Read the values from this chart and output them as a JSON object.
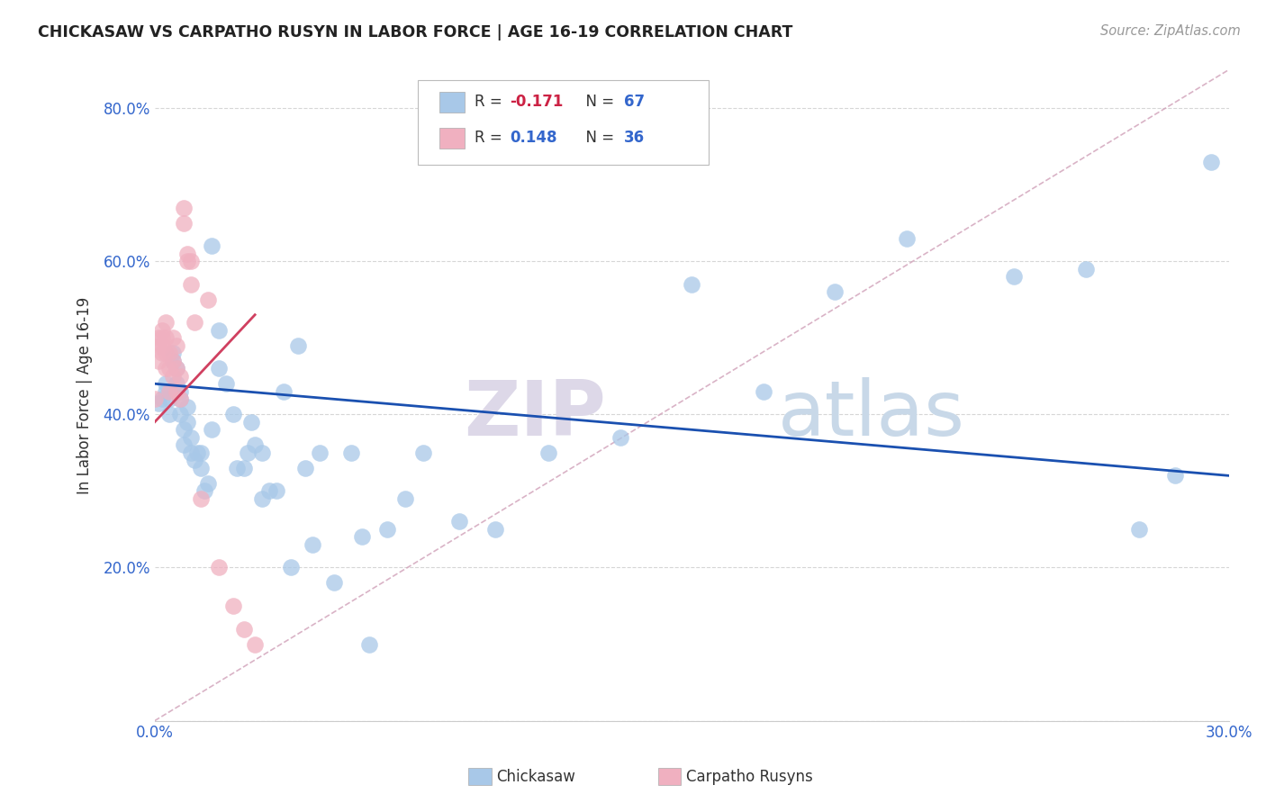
{
  "title": "CHICKASAW VS CARPATHO RUSYN IN LABOR FORCE | AGE 16-19 CORRELATION CHART",
  "source": "Source: ZipAtlas.com",
  "ylabel": "In Labor Force | Age 16-19",
  "xlim": [
    0.0,
    0.3
  ],
  "ylim": [
    0.0,
    0.85
  ],
  "blue_color": "#a8c8e8",
  "pink_color": "#f0b0c0",
  "blue_line_color": "#1a50b0",
  "pink_line_color": "#d04060",
  "dash_line_color": "#d0a0b8",
  "watermark_zip": "ZIP",
  "watermark_atlas": "atlas",
  "chickasaw_R": -0.171,
  "chickasaw_N": 67,
  "carpatho_R": 0.148,
  "carpatho_N": 36,
  "chickasaw_x": [
    0.001,
    0.002,
    0.003,
    0.003,
    0.004,
    0.004,
    0.005,
    0.005,
    0.006,
    0.006,
    0.006,
    0.007,
    0.007,
    0.007,
    0.008,
    0.008,
    0.009,
    0.009,
    0.01,
    0.01,
    0.011,
    0.012,
    0.013,
    0.013,
    0.014,
    0.015,
    0.016,
    0.016,
    0.018,
    0.018,
    0.02,
    0.022,
    0.023,
    0.025,
    0.026,
    0.027,
    0.028,
    0.03,
    0.032,
    0.034,
    0.036,
    0.038,
    0.04,
    0.042,
    0.044,
    0.046,
    0.05,
    0.055,
    0.058,
    0.06,
    0.065,
    0.07,
    0.075,
    0.085,
    0.095,
    0.11,
    0.13,
    0.15,
    0.17,
    0.19,
    0.21,
    0.24,
    0.26,
    0.275,
    0.285,
    0.295,
    0.03
  ],
  "chickasaw_y": [
    0.415,
    0.42,
    0.44,
    0.43,
    0.4,
    0.42,
    0.47,
    0.48,
    0.43,
    0.44,
    0.46,
    0.42,
    0.43,
    0.4,
    0.36,
    0.38,
    0.39,
    0.41,
    0.35,
    0.37,
    0.34,
    0.35,
    0.33,
    0.35,
    0.3,
    0.31,
    0.38,
    0.62,
    0.46,
    0.51,
    0.44,
    0.4,
    0.33,
    0.33,
    0.35,
    0.39,
    0.36,
    0.29,
    0.3,
    0.3,
    0.43,
    0.2,
    0.49,
    0.33,
    0.23,
    0.35,
    0.18,
    0.35,
    0.24,
    0.1,
    0.25,
    0.29,
    0.35,
    0.26,
    0.25,
    0.35,
    0.37,
    0.57,
    0.43,
    0.56,
    0.63,
    0.58,
    0.59,
    0.25,
    0.32,
    0.73,
    0.35
  ],
  "carpatho_x": [
    0.0,
    0.001,
    0.001,
    0.001,
    0.002,
    0.002,
    0.002,
    0.002,
    0.003,
    0.003,
    0.003,
    0.003,
    0.004,
    0.004,
    0.004,
    0.005,
    0.005,
    0.005,
    0.006,
    0.006,
    0.006,
    0.007,
    0.007,
    0.008,
    0.008,
    0.009,
    0.009,
    0.01,
    0.01,
    0.011,
    0.013,
    0.015,
    0.018,
    0.022,
    0.025,
    0.028
  ],
  "carpatho_y": [
    0.42,
    0.5,
    0.49,
    0.47,
    0.48,
    0.5,
    0.51,
    0.49,
    0.46,
    0.48,
    0.5,
    0.52,
    0.43,
    0.46,
    0.48,
    0.45,
    0.47,
    0.5,
    0.43,
    0.46,
    0.49,
    0.42,
    0.45,
    0.65,
    0.67,
    0.6,
    0.61,
    0.6,
    0.57,
    0.52,
    0.29,
    0.55,
    0.2,
    0.15,
    0.12,
    0.1
  ],
  "blue_line_x": [
    0.0,
    0.3
  ],
  "blue_line_y": [
    0.44,
    0.32
  ],
  "pink_line_x": [
    0.0,
    0.028
  ],
  "pink_line_y": [
    0.39,
    0.53
  ]
}
